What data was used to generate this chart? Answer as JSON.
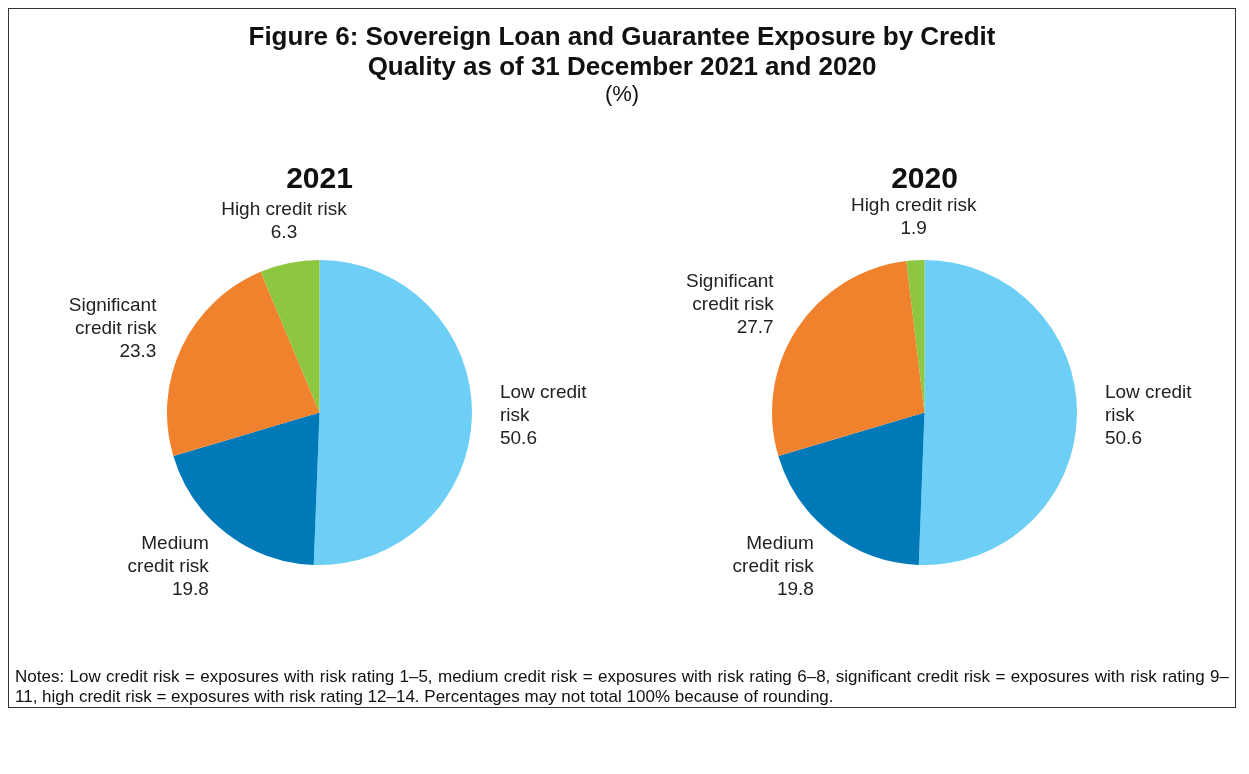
{
  "chart_data": [
    {
      "type": "other",
      "title": "Figure 6: Sovereign Loan and Guarantee Exposure by Credit Quality as of 31 December 2021 and 2020",
      "subtitle": "(%)",
      "annotations": [
        "Notes: Low credit risk = exposures with risk rating 1–5, medium credit risk = exposures with risk rating 6–8, significant credit risk = exposures with risk rating 9–11, high credit risk = exposures with risk rating 12–14. Percentages may not total 100% because of rounding."
      ]
    },
    {
      "type": "pie",
      "title": "2021",
      "categories": [
        "Low credit risk",
        "Medium credit risk",
        "Significant credit risk",
        "High credit risk"
      ],
      "values": [
        50.6,
        19.8,
        23.3,
        6.3
      ],
      "colors": [
        "#6dcff6",
        "#0079b8",
        "#f0822d",
        "#8dc63f"
      ],
      "data_labels": true,
      "legend": false
    },
    {
      "type": "pie",
      "title": "2020",
      "categories": [
        "Low credit risk",
        "Medium credit risk",
        "Significant credit risk",
        "High credit risk"
      ],
      "values": [
        50.6,
        19.8,
        27.7,
        1.9
      ],
      "colors": [
        "#6dcff6",
        "#0079b8",
        "#f0822d",
        "#8dc63f"
      ],
      "data_labels": true,
      "legend": false
    }
  ]
}
